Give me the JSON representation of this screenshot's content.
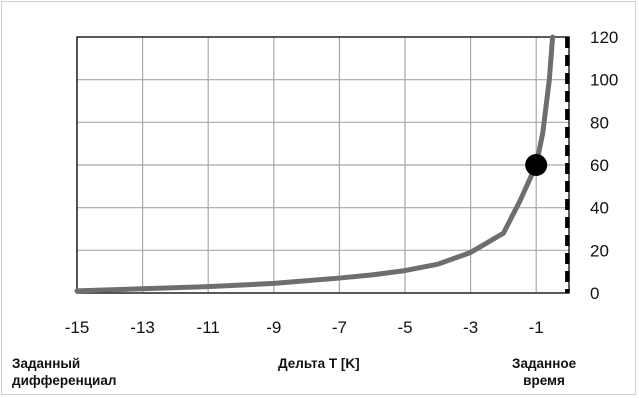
{
  "chart_data": {
    "type": "line",
    "xlabel": "Дельта T [K]",
    "left_label": [
      "Заданный",
      "дифференциал"
    ],
    "right_label": [
      "Заданное",
      "время"
    ],
    "x_ticks": [
      -15,
      -13,
      -11,
      -9,
      -7,
      -5,
      -3,
      -1
    ],
    "y_ticks": [
      0,
      20,
      40,
      60,
      80,
      100,
      120
    ],
    "xlim": [
      -15,
      0
    ],
    "ylim": [
      0,
      120
    ],
    "grid": true,
    "series": [
      {
        "x": [
          -15,
          -13,
          -11,
          -9,
          -7,
          -6,
          -5,
          -4,
          -3,
          -2,
          -1.5,
          -1,
          -0.8,
          -0.6,
          -0.5
        ],
        "y": [
          1,
          2,
          3,
          4.5,
          7,
          8.5,
          10.5,
          13.5,
          19,
          28,
          43,
          60,
          75,
          100,
          120
        ],
        "color": "#6e6e6e"
      }
    ],
    "marker": {
      "x": -1,
      "y": 60,
      "color": "#000000"
    },
    "dashed_line": {
      "x": -0.05,
      "color": "#000000"
    }
  }
}
